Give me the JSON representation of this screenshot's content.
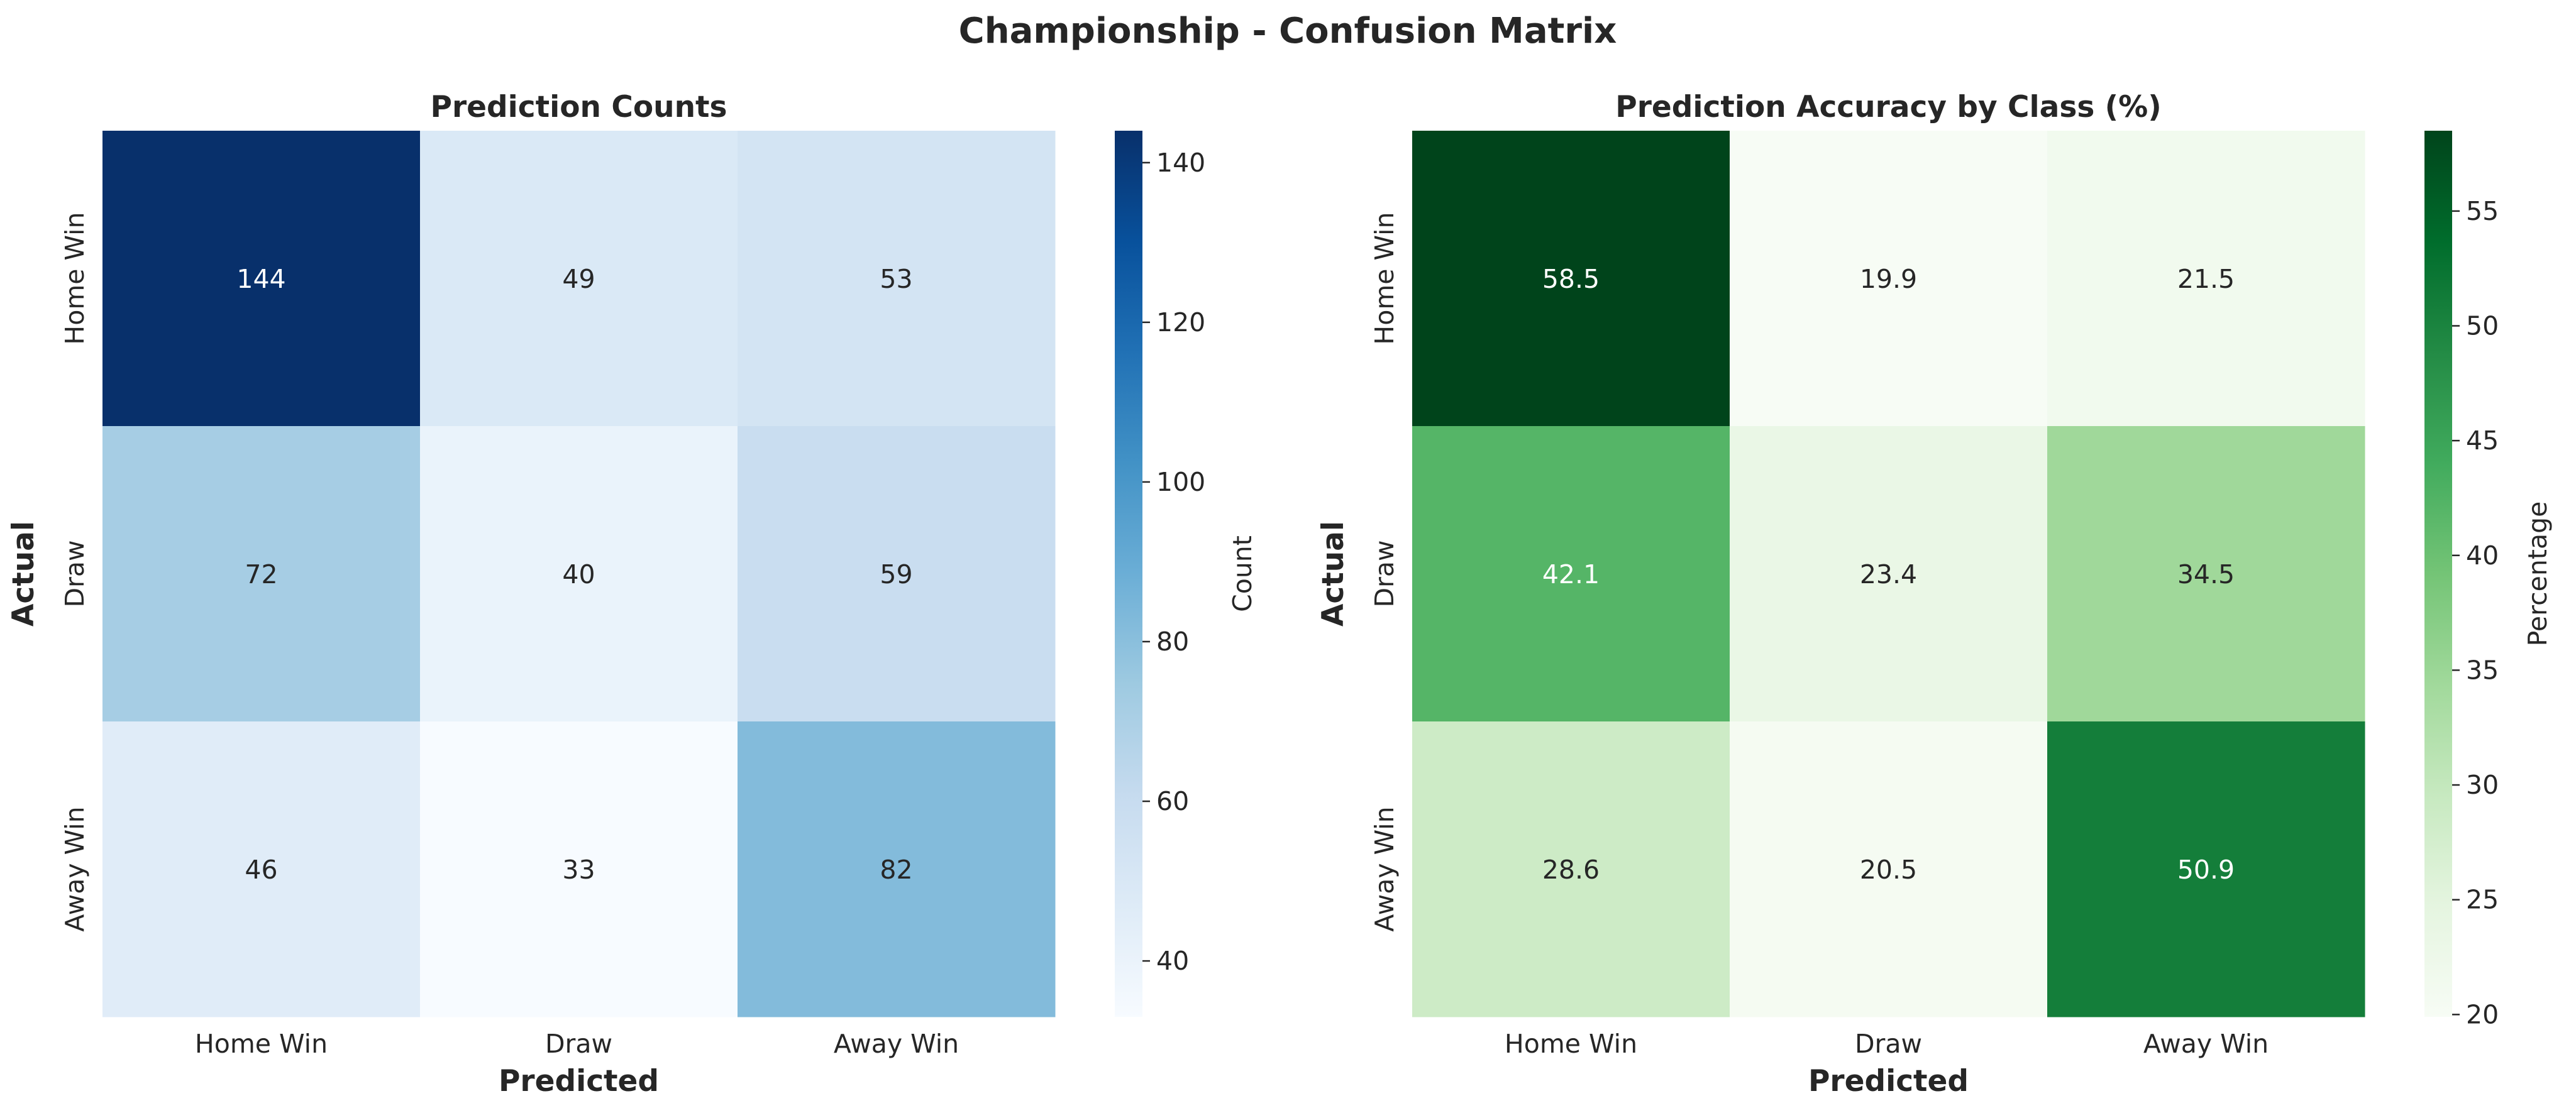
{
  "suptitle": "Championship - Confusion Matrix",
  "chart_data": [
    {
      "type": "heatmap",
      "title": "Prediction Counts",
      "xlabel": "Predicted",
      "ylabel": "Actual",
      "x_categories": [
        "Home Win",
        "Draw",
        "Away Win"
      ],
      "y_categories": [
        "Home Win",
        "Draw",
        "Away Win"
      ],
      "values": [
        [
          144,
          49,
          53
        ],
        [
          72,
          40,
          59
        ],
        [
          46,
          33,
          82
        ]
      ],
      "annotations": [
        "144",
        "49",
        "53",
        "72",
        "40",
        "59",
        "46",
        "33",
        "82"
      ],
      "colorbar_label": "Count",
      "colorbar_range": [
        33,
        144
      ],
      "colorbar_ticks": [
        40,
        60,
        80,
        100,
        120,
        140
      ],
      "colormap": "Blues",
      "colormap_stops": [
        "#f7fbff",
        "#deebf7",
        "#c6dbef",
        "#9ecae1",
        "#6baed6",
        "#4292c6",
        "#2171b5",
        "#08519c",
        "#08306b"
      ]
    },
    {
      "type": "heatmap",
      "title": "Prediction Accuracy by Class (%)",
      "xlabel": "Predicted",
      "ylabel": "Actual",
      "x_categories": [
        "Home Win",
        "Draw",
        "Away Win"
      ],
      "y_categories": [
        "Home Win",
        "Draw",
        "Away Win"
      ],
      "values": [
        [
          58.5,
          19.9,
          21.5
        ],
        [
          42.1,
          23.4,
          34.5
        ],
        [
          28.6,
          20.5,
          50.9
        ]
      ],
      "annotations": [
        "58.5",
        "19.9",
        "21.5",
        "42.1",
        "23.4",
        "34.5",
        "28.6",
        "20.5",
        "50.9"
      ],
      "colorbar_label": "Percentage",
      "colorbar_range": [
        19.9,
        58.5
      ],
      "colorbar_ticks": [
        20,
        25,
        30,
        35,
        40,
        45,
        50,
        55
      ],
      "colormap": "Greens",
      "colormap_stops": [
        "#f7fcf5",
        "#e5f5e0",
        "#c7e9c0",
        "#a1d99b",
        "#74c476",
        "#41ab5d",
        "#238b45",
        "#006d2c",
        "#00441b"
      ]
    }
  ]
}
